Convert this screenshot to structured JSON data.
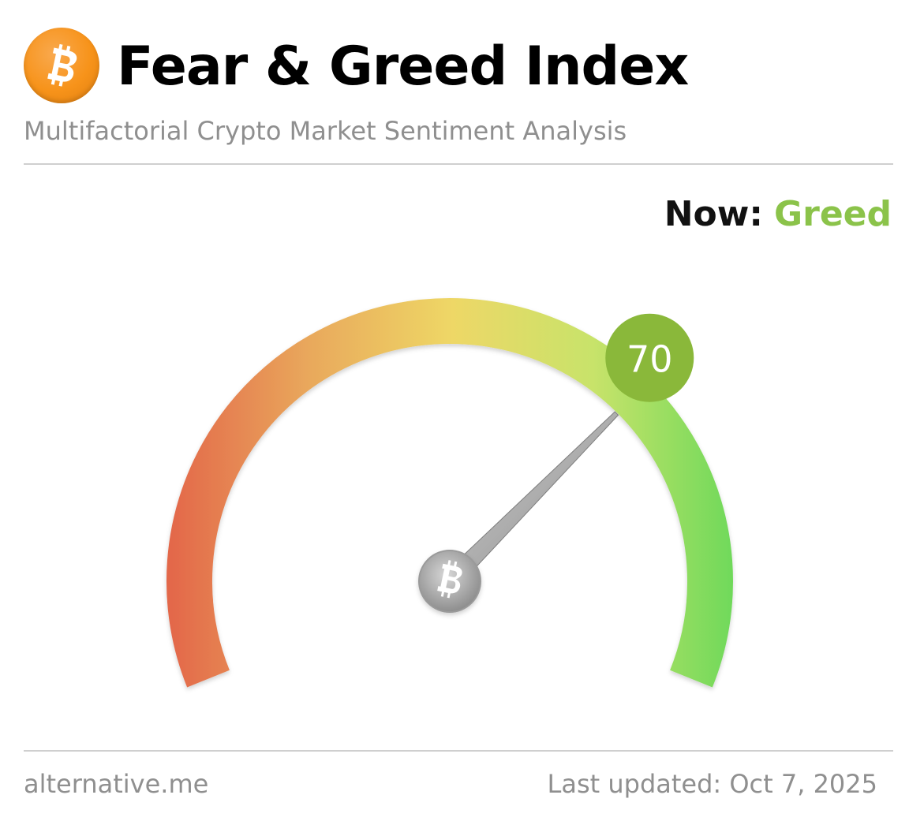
{
  "header": {
    "logo_icon": "bitcoin-icon",
    "title": "Fear & Greed Index",
    "subtitle": "Multifactorial Crypto Market Sentiment Analysis"
  },
  "status": {
    "label": "Now:",
    "value": "Greed",
    "value_color": "#8bc34a"
  },
  "gauge": {
    "value": 70,
    "min": 0,
    "max": 100,
    "badge_text": "70",
    "badge_color": "#8ab83a",
    "gradient_colors": [
      "#e3674a",
      "#e9a95c",
      "#eed766",
      "#c8e36a",
      "#6fd95a"
    ],
    "needle_hub_icon": "bitcoin-icon"
  },
  "footer": {
    "source": "alternative.me",
    "last_updated": "Last updated: Oct 7, 2025"
  }
}
